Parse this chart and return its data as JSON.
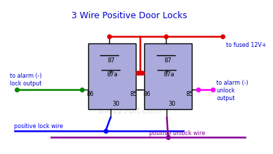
{
  "title": "3 Wire Positive Door Locks",
  "title_color": "#0000cc",
  "title_fontsize": 9,
  "bg_color": "#ffffff",
  "relay_color": "#aaaadd",
  "relay_border": "#000000",
  "labels": {
    "to_fused": "to fused 12V+",
    "to_alarm_lock": "to alarm (-)\nlock output",
    "to_alarm_unlock": "to alarm (-)\nunlock\noutput",
    "positive_lock": "positive lock wire",
    "positive_unlock": "positive unlock wire",
    "watermark": "the12volt.com"
  },
  "wire_blue_color": "#0000ff",
  "wire_red_color": "#dd0000",
  "wire_green_color": "#008800",
  "wire_magenta_color": "#ff00ff",
  "wire_purple_color": "#880099",
  "text_color": "#0000cc",
  "label_fontsize": 5.8,
  "pin_fontsize": 6.0,
  "r1x": 0.33,
  "r1y": 0.27,
  "r1w": 0.195,
  "r1h": 0.47,
  "r2x": 0.56,
  "r2y": 0.27,
  "r2w": 0.195,
  "r2h": 0.47
}
